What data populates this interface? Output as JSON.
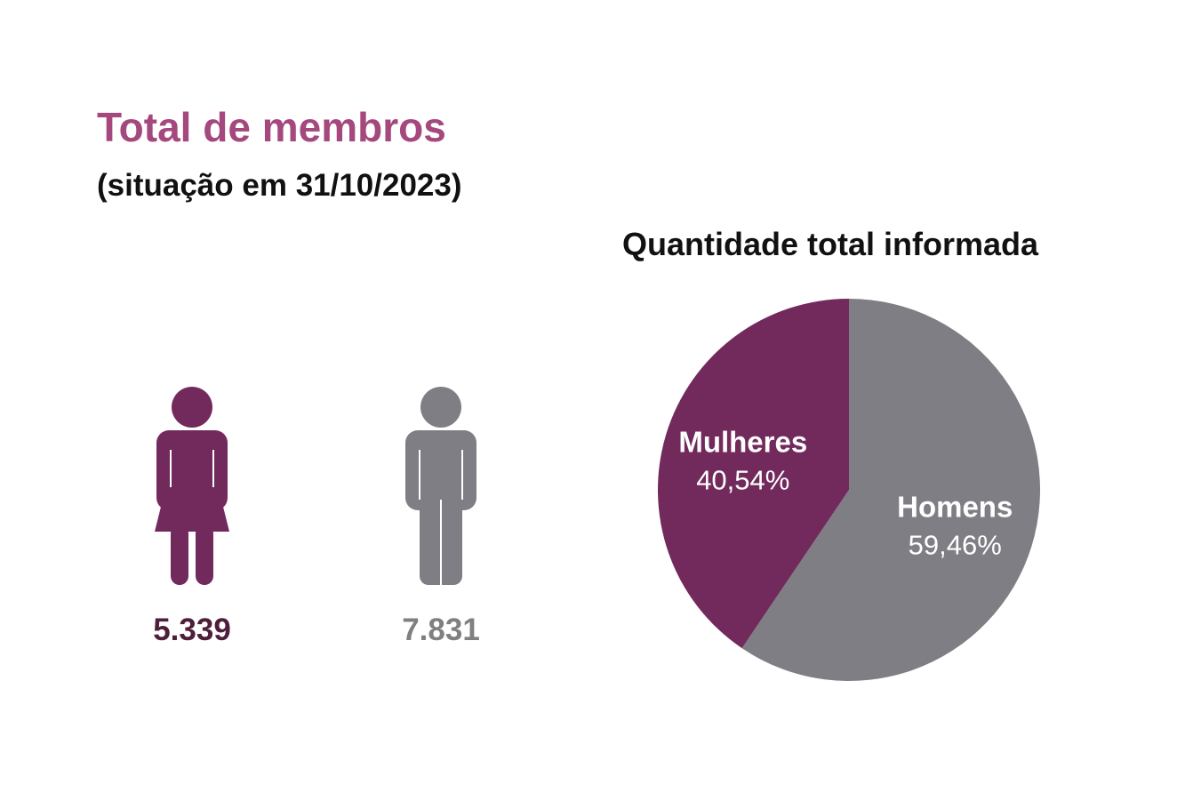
{
  "header": {
    "title": "Total de membros",
    "subtitle": "(situação em 31/10/2023)"
  },
  "colors": {
    "title": "#a4487e",
    "women": "#722a5d",
    "men": "#7f7e84",
    "women_count": "#4e1e3b",
    "men_count": "#808080"
  },
  "icons": {
    "women": "woman-icon",
    "men": "man-icon"
  },
  "counts": {
    "women": "5.339",
    "men": "7.831"
  },
  "chart_data": {
    "type": "pie",
    "title": "Quantidade total informada",
    "slices": [
      {
        "name": "Homens",
        "value": 59.46,
        "label": "59,46%",
        "color": "#7f7e84"
      },
      {
        "name": "Mulheres",
        "value": 40.54,
        "label": "40,54%",
        "color": "#722a5d"
      }
    ]
  }
}
